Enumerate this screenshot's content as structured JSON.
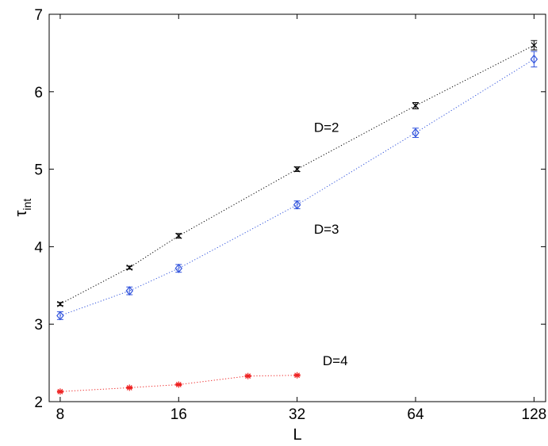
{
  "chart_data": {
    "type": "scatter",
    "title": "",
    "xlabel": "L",
    "ylabel": "τ",
    "ylabel_subscript": "int",
    "x_scale": "log2",
    "xlim": [
      7.5,
      137
    ],
    "ylim": [
      2,
      7
    ],
    "x_ticks": [
      8,
      16,
      32,
      64,
      128
    ],
    "x_tick_labels": [
      "8",
      "16",
      "32",
      "64",
      "128"
    ],
    "y_ticks": [
      2,
      3,
      4,
      5,
      6,
      7
    ],
    "y_tick_labels": [
      "2",
      "3",
      "4",
      "5",
      "6",
      "7"
    ],
    "grid": false,
    "series": [
      {
        "color": "#000000",
        "marker": "x",
        "x": [
          8,
          12,
          16,
          32,
          64,
          128
        ],
        "y": [
          3.26,
          3.73,
          4.14,
          5.0,
          5.82,
          6.6
        ],
        "err": [
          0.02,
          0.02,
          0.03,
          0.03,
          0.04,
          0.06
        ]
      },
      {
        "color": "#3355dd",
        "marker": "diamond",
        "x": [
          8,
          12,
          16,
          32,
          64,
          128
        ],
        "y": [
          3.11,
          3.43,
          3.72,
          4.54,
          5.47,
          6.42
        ],
        "err": [
          0.05,
          0.05,
          0.05,
          0.05,
          0.06,
          0.1
        ]
      },
      {
        "color": "#ee2222",
        "marker": "star",
        "x": [
          8,
          12,
          16,
          24,
          32
        ],
        "y": [
          2.13,
          2.18,
          2.22,
          2.33,
          2.34
        ],
        "err": [
          0.01,
          0.01,
          0.01,
          0.01,
          0.01
        ]
      }
    ],
    "annotations": [
      {
        "text": "D=2",
        "x": 38,
        "y": 5.48
      },
      {
        "text": "D=3",
        "x": 38,
        "y": 4.17
      },
      {
        "text": "D=4",
        "x": 40,
        "y": 2.47
      }
    ]
  }
}
